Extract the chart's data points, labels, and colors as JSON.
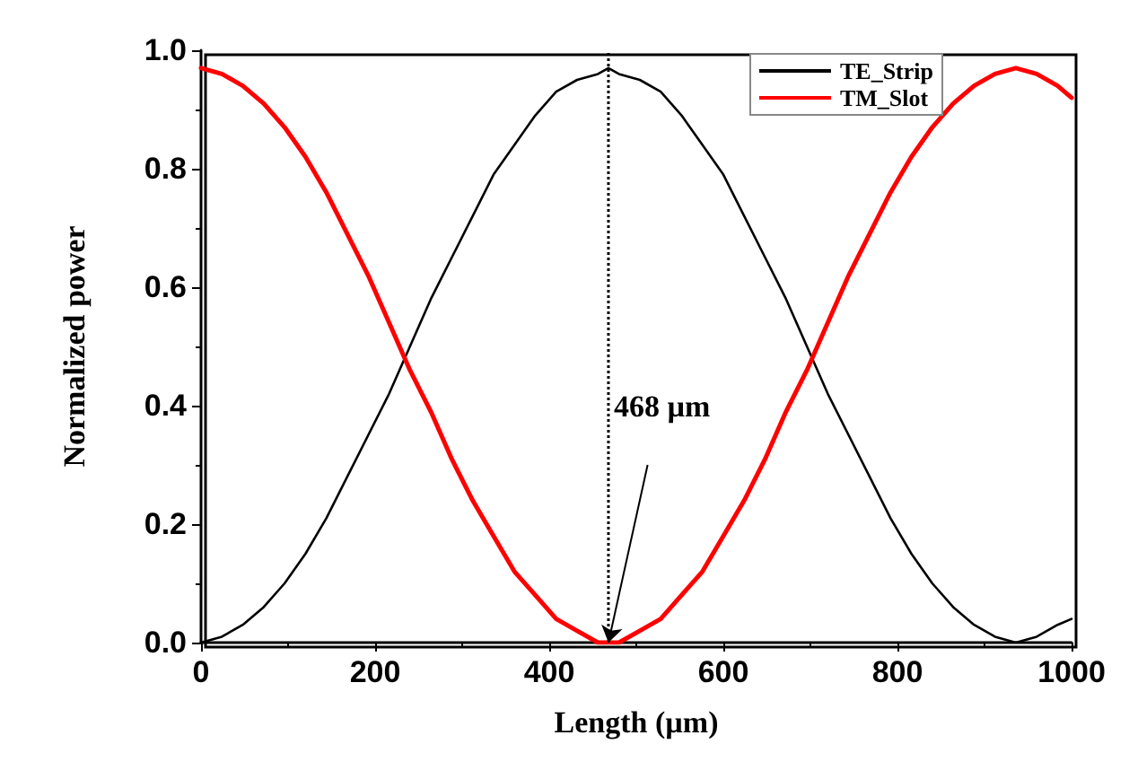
{
  "chart_data": {
    "type": "line",
    "xlabel": "Length (µm)",
    "ylabel": "Normalized power",
    "x": [
      0,
      24,
      48,
      72,
      96,
      120,
      144,
      168,
      192,
      216,
      240,
      264,
      288,
      312,
      336,
      360,
      384,
      408,
      432,
      456,
      468,
      480,
      504,
      528,
      552,
      576,
      600,
      624,
      648,
      672,
      696,
      720,
      744,
      768,
      792,
      816,
      840,
      864,
      888,
      912,
      936,
      960,
      984,
      1000
    ],
    "series": [
      {
        "name": "TE_Strip",
        "color": "#000000",
        "values": [
          0,
          0.01,
          0.03,
          0.06,
          0.1,
          0.15,
          0.21,
          0.28,
          0.35,
          0.42,
          0.5,
          0.58,
          0.65,
          0.72,
          0.79,
          0.84,
          0.89,
          0.93,
          0.95,
          0.96,
          0.97,
          0.96,
          0.95,
          0.93,
          0.89,
          0.84,
          0.79,
          0.72,
          0.65,
          0.58,
          0.5,
          0.42,
          0.35,
          0.28,
          0.21,
          0.15,
          0.1,
          0.06,
          0.03,
          0.01,
          0,
          0.01,
          0.03,
          0.04
        ]
      },
      {
        "name": "TM_Slot",
        "color": "#ff0000",
        "values": [
          0.97,
          0.96,
          0.94,
          0.91,
          0.87,
          0.82,
          0.76,
          0.69,
          0.62,
          0.54,
          0.46,
          0.39,
          0.31,
          0.24,
          0.18,
          0.12,
          0.08,
          0.04,
          0.02,
          0,
          0,
          0,
          0.02,
          0.04,
          0.08,
          0.12,
          0.18,
          0.24,
          0.31,
          0.39,
          0.46,
          0.54,
          0.62,
          0.69,
          0.76,
          0.82,
          0.87,
          0.91,
          0.94,
          0.96,
          0.97,
          0.96,
          0.94,
          0.92
        ]
      }
    ],
    "xlim": [
      0,
      1000
    ],
    "xticks": [
      0,
      200,
      400,
      600,
      800,
      1000
    ],
    "ylim": [
      0,
      1.0
    ],
    "yticks": [
      {
        "value": 0,
        "label": "0.0"
      },
      {
        "value": 0.2,
        "label": "0.2"
      },
      {
        "value": 0.4,
        "label": "0.4"
      },
      {
        "value": 0.6,
        "label": "0.6"
      },
      {
        "value": 0.8,
        "label": "0.8"
      },
      {
        "value": 1.0,
        "label": "1.0"
      }
    ],
    "ref_lines": [
      {
        "axis": "x",
        "value": 468,
        "color": "#000000",
        "line_style": "dotted"
      }
    ],
    "annotations": [
      "468 µm"
    ],
    "legend": "top right",
    "grid": false,
    "marker": "none",
    "line_style": "solid"
  }
}
